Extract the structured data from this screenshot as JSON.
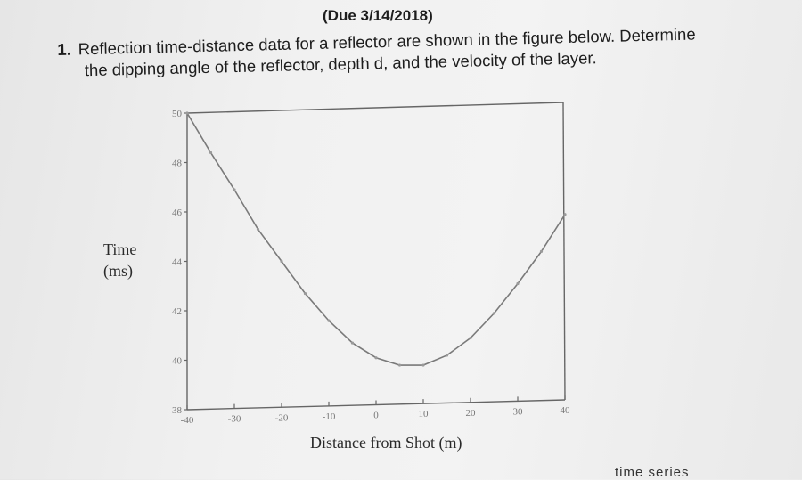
{
  "header": {
    "due": "(Due 3/14/2018)"
  },
  "question": {
    "number": "1.",
    "line1": "Reflection time-distance data for a reflector are shown in the figure below. Determine",
    "line2": "the dipping angle of the reflector, depth d, and the velocity of the layer."
  },
  "chart_data": {
    "type": "line",
    "xlabel": "Distance from Shot (m)",
    "ylabel_line1": "Time",
    "ylabel_line2": "(ms)",
    "xlim": [
      -40,
      40
    ],
    "ylim": [
      38,
      50
    ],
    "x_ticks": [
      "-40",
      "-30",
      "-20",
      "-10",
      "0",
      "10",
      "20",
      "30",
      "40"
    ],
    "y_ticks": [
      "50",
      "48",
      "46",
      "44",
      "42",
      "40",
      "38"
    ],
    "series": [
      {
        "x": [
          -40,
          -35,
          -30,
          -25,
          -20,
          -15,
          -10,
          -5,
          0,
          5,
          10,
          15,
          20,
          25,
          30,
          35,
          40
        ],
        "y": [
          50.0,
          48.4,
          46.9,
          45.3,
          44.0,
          42.7,
          41.6,
          40.7,
          40.1,
          39.8,
          39.8,
          40.2,
          40.9,
          41.9,
          43.1,
          44.4,
          45.9
        ]
      }
    ]
  },
  "footer_snippet": "time series"
}
